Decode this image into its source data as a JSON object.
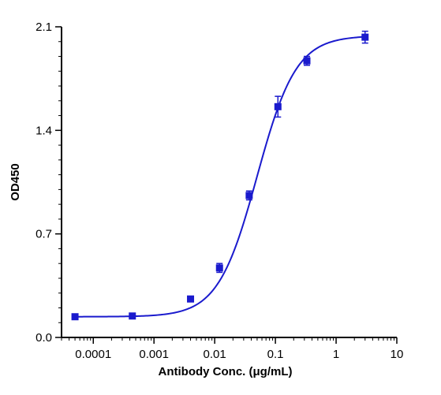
{
  "chart_data": {
    "type": "scatter",
    "xlabel": "Antibody Conc. (μg/mL)",
    "ylabel": "OD450",
    "xscale": "log",
    "xlim": [
      3e-05,
      10
    ],
    "ylim": [
      0,
      2.1
    ],
    "x_ticks": [
      {
        "value": 0.0001,
        "label": "0.0001"
      },
      {
        "value": 0.001,
        "label": "0.001"
      },
      {
        "value": 0.01,
        "label": "0.01"
      },
      {
        "value": 0.1,
        "label": "0.1"
      },
      {
        "value": 1,
        "label": "1"
      },
      {
        "value": 10,
        "label": "10"
      }
    ],
    "y_ticks": [
      {
        "value": 0.0,
        "label": "0.0"
      },
      {
        "value": 0.7,
        "label": "0.7"
      },
      {
        "value": 1.4,
        "label": "1.4"
      },
      {
        "value": 2.1,
        "label": "2.1"
      }
    ],
    "y_minor_step": 0.1,
    "grid": false,
    "legend": "none",
    "color": "#1a1acd",
    "series": [
      {
        "points": [
          {
            "x": 5e-05,
            "y": 0.14,
            "err": 0.01
          },
          {
            "x": 0.00044,
            "y": 0.145,
            "err": 0.01
          },
          {
            "x": 0.004,
            "y": 0.26,
            "err": 0.015
          },
          {
            "x": 0.012,
            "y": 0.47,
            "err": 0.03
          },
          {
            "x": 0.037,
            "y": 0.96,
            "err": 0.03
          },
          {
            "x": 0.11,
            "y": 1.56,
            "err": 0.07
          },
          {
            "x": 0.33,
            "y": 1.87,
            "err": 0.03
          },
          {
            "x": 3.0,
            "y": 2.03,
            "err": 0.04
          }
        ],
        "fit": {
          "model": "4PL",
          "bottom": 0.14,
          "top": 2.04,
          "ec50": 0.05,
          "hill": 1.35
        }
      }
    ]
  }
}
